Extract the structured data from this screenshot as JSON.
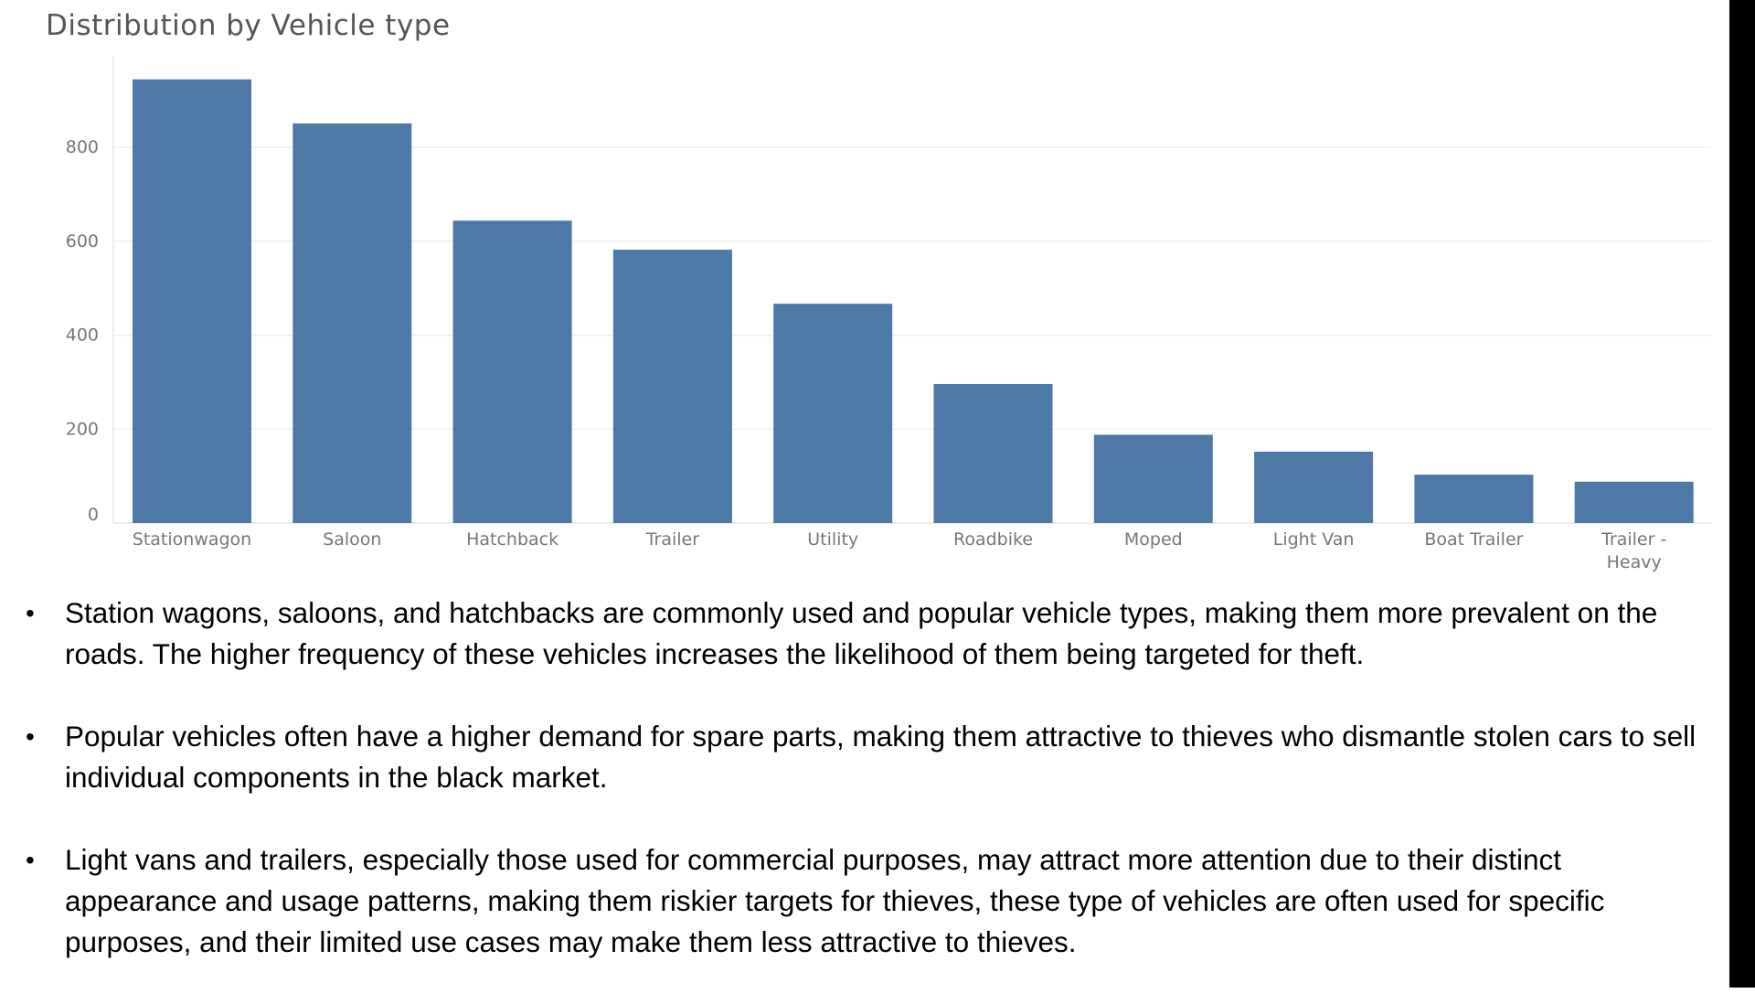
{
  "chart_data": {
    "type": "bar",
    "title": "Distribution by Vehicle type",
    "xlabel": "",
    "ylabel": "",
    "categories": [
      "Stationwagon",
      "Saloon",
      "Hatchback",
      "Trailer",
      "Utility",
      "Roadbike",
      "Moped",
      "Light Van",
      "Boat Trailer",
      "Trailer - Heavy"
    ],
    "category_lines": [
      [
        "Stationwagon"
      ],
      [
        "Saloon"
      ],
      [
        "Hatchback"
      ],
      [
        "Trailer"
      ],
      [
        "Utility"
      ],
      [
        "Roadbike"
      ],
      [
        "Moped"
      ],
      [
        "Light Van"
      ],
      [
        "Boat Trailer"
      ],
      [
        "Trailer -",
        "Heavy"
      ]
    ],
    "values": [
      945,
      851,
      644,
      582,
      467,
      296,
      188,
      152,
      103,
      88
    ],
    "ylim": [
      0,
      1000
    ],
    "yticks": [
      0,
      200,
      400,
      600,
      800
    ],
    "grid": true,
    "bar_color": "#4e79a7"
  },
  "bullets": [
    "Station wagons, saloons, and hatchbacks are commonly used and popular vehicle types, making them more prevalent on the roads. The higher frequency of these vehicles increases the likelihood of them being targeted for theft.",
    "Popular vehicles often have a higher demand for spare parts, making them attractive to thieves who dismantle stolen cars to sell individual components in the black market.",
    "Light vans and trailers, especially those used for commercial purposes, may attract more attention due to their distinct appearance and usage patterns, making them riskier targets for thieves, these type of vehicles are often used for specific purposes, and their limited use cases may make them less attractive to thieves."
  ],
  "bullet_symbol": "•"
}
